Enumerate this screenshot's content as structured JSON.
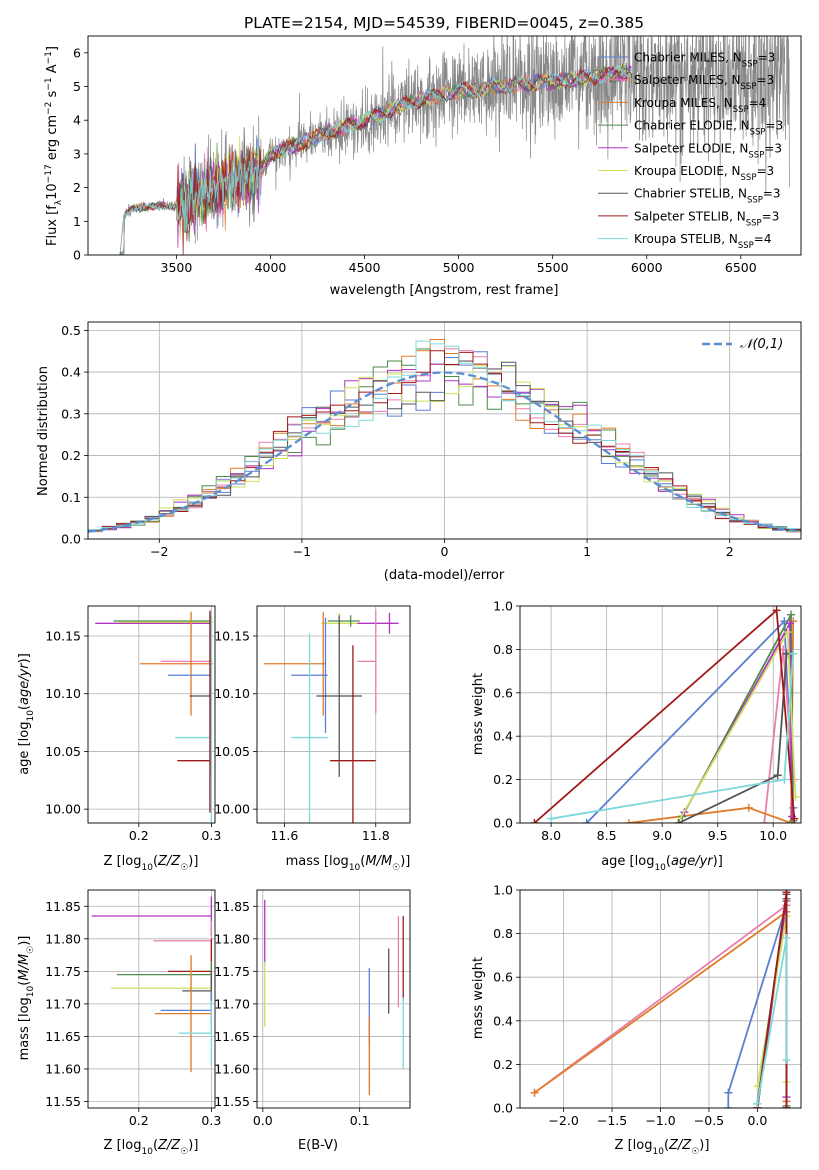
{
  "figure_title": "PLATE=2154, MJD=54539, FIBERID=0045, z=0.385",
  "series_colors": {
    "Chabrier MILES": "#5b7fd1",
    "Salpeter MILES": "#e87fae",
    "Kroupa MILES": "#e07b2a",
    "Chabrier ELODIE": "#4f8a4f",
    "Salpeter ELODIE": "#b035c0",
    "Kroupa ELODIE": "#cde05b",
    "Chabrier STELIB": "#555555",
    "Salpeter STELIB": "#a01a1a",
    "Kroupa STELIB": "#7fd8d8"
  },
  "chart_data": [
    {
      "id": "spectrum",
      "type": "line",
      "xlabel": "wavelength [Angstrom, rest frame]",
      "ylabel": "Flux [f_λ 10⁻¹⁷ erg cm⁻² s⁻¹ A⁻¹]",
      "xlim": [
        3030,
        6820
      ],
      "ylim": [
        0,
        6.5
      ],
      "xticks": [
        3500,
        4000,
        4500,
        5000,
        5500,
        6000,
        6500
      ],
      "yticks": [
        0,
        1,
        2,
        3,
        4,
        5,
        6
      ],
      "grid": false,
      "legend_position": "right",
      "data_color": "#888888",
      "data_envelope": {
        "x": [
          3200,
          3220,
          3250,
          3300,
          3400,
          3500,
          3550,
          3600,
          3700,
          3800,
          3900,
          3950,
          4000,
          4100,
          4200,
          4300,
          4400,
          4500,
          4600,
          4700,
          4800,
          4900,
          5000,
          5100,
          5200,
          5300,
          5400,
          5500,
          5600,
          5700,
          5800,
          5900,
          6000,
          6100,
          6200,
          6300,
          6400,
          6500,
          6600,
          6700
        ],
        "y": [
          0.0,
          1.2,
          1.35,
          1.4,
          1.45,
          1.45,
          1.55,
          1.7,
          1.95,
          2.2,
          2.4,
          2.5,
          3.0,
          3.2,
          3.4,
          3.6,
          3.8,
          4.0,
          4.2,
          4.45,
          4.6,
          4.75,
          4.85,
          4.9,
          5.0,
          5.05,
          5.1,
          5.15,
          5.2,
          5.3,
          5.35,
          5.4,
          5.4,
          5.35,
          5.4,
          5.35,
          5.35,
          5.3,
          5.3,
          5.3
        ],
        "noise_amplitude": "increases with wavelength, about 0.2 to 1.2 in flux"
      },
      "series": [
        {
          "name": "Chabrier MILES",
          "label_main": "Chabrier MILES, N",
          "label_sub": "SSP",
          "label_tail": "=3"
        },
        {
          "name": "Salpeter MILES",
          "label_main": "Salpeter MILES, N",
          "label_sub": "SSP",
          "label_tail": "=3"
        },
        {
          "name": "Kroupa MILES",
          "label_main": "Kroupa MILES, N",
          "label_sub": "SSP",
          "label_tail": "=4"
        },
        {
          "name": "Chabrier ELODIE",
          "label_main": "Chabrier ELODIE, N",
          "label_sub": "SSP",
          "label_tail": "=3"
        },
        {
          "name": "Salpeter ELODIE",
          "label_main": "Salpeter ELODIE, N",
          "label_sub": "SSP",
          "label_tail": "=3"
        },
        {
          "name": "Kroupa ELODIE",
          "label_main": "Kroupa ELODIE, N",
          "label_sub": "SSP",
          "label_tail": "=3"
        },
        {
          "name": "Chabrier STELIB",
          "label_main": "Chabrier STELIB, N",
          "label_sub": "SSP",
          "label_tail": "=3"
        },
        {
          "name": "Salpeter STELIB",
          "label_main": "Salpeter STELIB, N",
          "label_sub": "SSP",
          "label_tail": "=3"
        },
        {
          "name": "Kroupa STELIB",
          "label_main": "Kroupa STELIB, N",
          "label_sub": "SSP",
          "label_tail": "=4"
        }
      ]
    },
    {
      "id": "residuals",
      "type": "histogram",
      "xlabel": "(data-model)/error",
      "ylabel": "Normed distribution",
      "xlim": [
        -2.5,
        2.5
      ],
      "ylim": [
        0,
        0.52
      ],
      "xticks": [
        -2,
        -1,
        0,
        1,
        2
      ],
      "yticks": [
        0.0,
        0.1,
        0.2,
        0.3,
        0.4,
        0.5
      ],
      "grid": true,
      "legend_position": "top-right",
      "legend": "𝒩(0,1)",
      "reference_curve": {
        "name": "𝒩(0,1)",
        "kind": "gaussian",
        "mean": 0,
        "sigma": 1,
        "color": "#5b8fd4"
      },
      "bin_width": 0.1
    },
    {
      "id": "age-vs-z",
      "type": "errorbar",
      "xlabel": "Z [log10(Z/Z☉)]",
      "ylabel": "age [log10(age/yr)]",
      "xlim": [
        0.13,
        0.305
      ],
      "ylim": [
        9.988,
        10.176
      ],
      "xticks": [
        0.2,
        0.3
      ],
      "yticks": [
        10.0,
        10.05,
        10.1,
        10.15
      ],
      "grid": true,
      "points": [
        {
          "series": "Salpeter ELODIE",
          "x": 0.3,
          "y": 10.161,
          "xerr": [
            0.16,
            0.0
          ],
          "yerr": [
            0.006,
            0.006
          ]
        },
        {
          "series": "Chabrier ELODIE",
          "x": 0.3,
          "y": 10.163,
          "xerr": [
            0.135,
            0.0
          ],
          "yerr": [
            0.005,
            0.005
          ]
        },
        {
          "series": "Kroupa ELODIE",
          "x": 0.272,
          "y": 10.162,
          "xerr": [
            0.1,
            0.03
          ],
          "yerr": [
            0.009,
            0.009
          ]
        },
        {
          "series": "Salpeter MILES",
          "x": 0.3,
          "y": 10.128,
          "xerr": [
            0.07,
            0.0
          ],
          "yerr": [
            0.04,
            0.04
          ]
        },
        {
          "series": "Kroupa MILES",
          "x": 0.272,
          "y": 10.126,
          "xerr": [
            0.07,
            0.03
          ],
          "yerr": [
            0.045,
            0.045
          ]
        },
        {
          "series": "Chabrier MILES",
          "x": 0.3,
          "y": 10.116,
          "xerr": [
            0.06,
            0.0
          ],
          "yerr": [
            0.05,
            0.05
          ]
        },
        {
          "series": "Chabrier STELIB",
          "x": 0.3,
          "y": 10.098,
          "xerr": [
            0.03,
            0.0
          ],
          "yerr": [
            0.07,
            0.07
          ]
        },
        {
          "series": "Kroupa STELIB",
          "x": 0.3,
          "y": 10.062,
          "xerr": [
            0.05,
            0.0
          ],
          "yerr": [
            0.11,
            0.11
          ]
        },
        {
          "series": "Salpeter STELIB",
          "x": 0.298,
          "y": 10.042,
          "xerr": [
            0.045,
            0.0
          ],
          "yerr": [
            0.045,
            0.13
          ]
        }
      ]
    },
    {
      "id": "age-vs-mass",
      "type": "errorbar",
      "xlabel": "mass [log10(M/M☉)]",
      "ylabel": "",
      "xlim": [
        11.54,
        11.875
      ],
      "ylim": [
        9.988,
        10.176
      ],
      "xticks": [
        11.6,
        11.8
      ],
      "yticks": [
        10.0,
        10.05,
        10.1,
        10.15
      ],
      "grid": true,
      "points": [
        {
          "series": "Salpeter ELODIE",
          "x": 11.83,
          "y": 10.161,
          "xerr": [
            0.07,
            0.02
          ],
          "yerr": [
            0.009,
            0.009
          ]
        },
        {
          "series": "Kroupa ELODIE",
          "x": 11.72,
          "y": 10.161,
          "xerr": [
            0.04,
            0.04
          ],
          "yerr": [
            0.009,
            0.009
          ]
        },
        {
          "series": "Chabrier ELODIE",
          "x": 11.745,
          "y": 10.163,
          "xerr": [
            0.05,
            0.02
          ],
          "yerr": [
            0.005,
            0.005
          ]
        },
        {
          "series": "Salpeter MILES",
          "x": 11.8,
          "y": 10.128,
          "xerr": [
            0.04,
            0.0
          ],
          "yerr": [
            0.045,
            0.045
          ]
        },
        {
          "series": "Kroupa MILES",
          "x": 11.685,
          "y": 10.126,
          "xerr": [
            0.13,
            0.005
          ],
          "yerr": [
            0.045,
            0.045
          ]
        },
        {
          "series": "Chabrier MILES",
          "x": 11.69,
          "y": 10.116,
          "xerr": [
            0.075,
            0.005
          ],
          "yerr": [
            0.05,
            0.05
          ]
        },
        {
          "series": "Chabrier STELIB",
          "x": 11.72,
          "y": 10.098,
          "xerr": [
            0.05,
            0.05
          ],
          "yerr": [
            0.07,
            0.07
          ]
        },
        {
          "series": "Kroupa STELIB",
          "x": 11.655,
          "y": 10.062,
          "xerr": [
            0.04,
            0.04
          ],
          "yerr": [
            0.09,
            0.09
          ]
        },
        {
          "series": "Salpeter STELIB",
          "x": 11.75,
          "y": 10.042,
          "xerr": [
            0.05,
            0.05
          ],
          "yerr": [
            0.1,
            0.1
          ]
        }
      ]
    },
    {
      "id": "weight-vs-age",
      "type": "line",
      "xlabel": "age [log10(age/yr)]",
      "ylabel": "mass weight",
      "xlim": [
        7.72,
        10.25
      ],
      "ylim": [
        0,
        1.0
      ],
      "xticks": [
        8.0,
        8.5,
        9.0,
        9.5,
        10.0
      ],
      "yticks": [
        0.0,
        0.2,
        0.4,
        0.6,
        0.8,
        1.0
      ],
      "grid": true,
      "series": [
        {
          "name": "Chabrier MILES",
          "x": [
            8.32,
            10.1,
            10.18
          ],
          "y": [
            0.0,
            0.93,
            0.07
          ]
        },
        {
          "name": "Salpeter MILES",
          "x": [
            9.92,
            10.09,
            10.18
          ],
          "y": [
            0.0,
            0.8,
            0.2
          ]
        },
        {
          "name": "Kroupa MILES",
          "x": [
            8.7,
            9.78,
            10.16,
            10.18
          ],
          "y": [
            0.0,
            0.07,
            0.0,
            0.93
          ]
        },
        {
          "name": "Chabrier ELODIE",
          "x": [
            9.18,
            10.16,
            10.18
          ],
          "y": [
            0.03,
            0.96,
            0.01
          ]
        },
        {
          "name": "Salpeter ELODIE",
          "x": [
            9.2,
            10.15,
            10.17
          ],
          "y": [
            0.05,
            0.92,
            0.03
          ]
        },
        {
          "name": "Kroupa ELODIE",
          "x": [
            9.14,
            10.13,
            10.2
          ],
          "y": [
            0.0,
            0.88,
            0.12
          ]
        },
        {
          "name": "Chabrier STELIB",
          "x": [
            9.15,
            10.04,
            10.12
          ],
          "y": [
            0.0,
            0.22,
            0.78
          ]
        },
        {
          "name": "Salpeter STELIB",
          "x": [
            7.85,
            10.03,
            10.19
          ],
          "y": [
            0.0,
            0.98,
            0.02
          ]
        },
        {
          "name": "Kroupa STELIB",
          "x": [
            8.0,
            10.1,
            10.18
          ],
          "y": [
            0.02,
            0.2,
            0.78
          ]
        }
      ]
    },
    {
      "id": "mass-vs-z",
      "type": "errorbar",
      "xlabel": "Z [log10(Z/Z☉)]",
      "ylabel": "mass [log10(M/M☉)]",
      "xlim": [
        0.13,
        0.305
      ],
      "ylim": [
        11.54,
        11.875
      ],
      "xticks": [
        0.1,
        0.2,
        0.3
      ],
      "yticks": [
        11.55,
        11.6,
        11.65,
        11.7,
        11.75,
        11.8,
        11.85
      ],
      "grid": true,
      "points": [
        {
          "series": "Salpeter ELODIE",
          "x": 0.3,
          "y": 11.835,
          "xerr": [
            0.165,
            0.0
          ],
          "yerr": [
            0.03,
            0.03
          ]
        },
        {
          "series": "Salpeter MILES",
          "x": 0.3,
          "y": 11.797,
          "xerr": [
            0.08,
            0.0
          ],
          "yerr": [
            0.03,
            0.03
          ]
        },
        {
          "series": "Salpeter STELIB",
          "x": 0.3,
          "y": 11.75,
          "xerr": [
            0.06,
            0.0
          ],
          "yerr": [
            0.05,
            0.05
          ]
        },
        {
          "series": "Chabrier ELODIE",
          "x": 0.3,
          "y": 11.745,
          "xerr": [
            0.13,
            0.0
          ],
          "yerr": [
            0.02,
            0.02
          ]
        },
        {
          "series": "Kroupa ELODIE",
          "x": 0.272,
          "y": 11.724,
          "xerr": [
            0.11,
            0.028
          ],
          "yerr": [
            0.04,
            0.04
          ]
        },
        {
          "series": "Chabrier STELIB",
          "x": 0.3,
          "y": 11.72,
          "xerr": [
            0.04,
            0.0
          ],
          "yerr": [
            0.03,
            0.03
          ]
        },
        {
          "series": "Chabrier MILES",
          "x": 0.3,
          "y": 11.69,
          "xerr": [
            0.07,
            0.0
          ],
          "yerr": [
            0.03,
            0.03
          ]
        },
        {
          "series": "Kroupa MILES",
          "x": 0.272,
          "y": 11.685,
          "xerr": [
            0.05,
            0.028
          ],
          "yerr": [
            0.09,
            0.09
          ]
        },
        {
          "series": "Kroupa STELIB",
          "x": 0.3,
          "y": 11.655,
          "xerr": [
            0.045,
            0.0
          ],
          "yerr": [
            0.05,
            0.05
          ]
        }
      ]
    },
    {
      "id": "mass-vs-ebv",
      "type": "errorbar",
      "xlabel": "E(B-V)",
      "ylabel": "",
      "xlim": [
        -0.006,
        0.152
      ],
      "ylim": [
        11.54,
        11.875
      ],
      "xticks": [
        0.0,
        0.1
      ],
      "yticks": [
        11.55,
        11.6,
        11.65,
        11.7,
        11.75,
        11.8,
        11.85
      ],
      "grid": true,
      "points": [
        {
          "series": "Salpeter ELODIE",
          "x": 0.002,
          "y": 11.81,
          "xerr": [
            0,
            0
          ],
          "yerr": [
            0.05,
            0.05
          ]
        },
        {
          "series": "Kroupa ELODIE",
          "x": 0.002,
          "y": 11.715,
          "xerr": [
            0,
            0
          ],
          "yerr": [
            0.05,
            0.05
          ]
        },
        {
          "series": "Chabrier MILES",
          "x": 0.11,
          "y": 11.695,
          "xerr": [
            0,
            0
          ],
          "yerr": [
            0.06,
            0.06
          ]
        },
        {
          "series": "Kroupa MILES",
          "x": 0.11,
          "y": 11.62,
          "xerr": [
            0,
            0
          ],
          "yerr": [
            0.06,
            0.06
          ]
        },
        {
          "series": "Chabrier STELIB",
          "x": 0.13,
          "y": 11.735,
          "xerr": [
            0,
            0
          ],
          "yerr": [
            0.05,
            0.05
          ]
        },
        {
          "series": "Salpeter MILES",
          "x": 0.14,
          "y": 11.765,
          "xerr": [
            0,
            0
          ],
          "yerr": [
            0.07,
            0.07
          ]
        },
        {
          "series": "Salpeter STELIB",
          "x": 0.145,
          "y": 11.77,
          "xerr": [
            0,
            0
          ],
          "yerr": [
            0.065,
            0.065
          ]
        },
        {
          "series": "Kroupa STELIB",
          "x": 0.145,
          "y": 11.655,
          "xerr": [
            0,
            0
          ],
          "yerr": [
            0.055,
            0.055
          ]
        }
      ]
    },
    {
      "id": "weight-vs-z",
      "type": "line",
      "xlabel": "Z [log10(Z/Z☉)]",
      "ylabel": "mass weight",
      "xlim": [
        -2.45,
        0.45
      ],
      "ylim": [
        0,
        1.0
      ],
      "xticks": [
        -2.0,
        -1.5,
        -1.0,
        -0.5,
        0.0
      ],
      "yticks": [
        0.0,
        0.2,
        0.4,
        0.6,
        0.8,
        1.0
      ],
      "grid": true,
      "series": [
        {
          "name": "Chabrier MILES",
          "x": [
            -0.3,
            -0.3,
            0.3,
            0.3
          ],
          "y": [
            0.0,
            0.07,
            0.93,
            0.0
          ]
        },
        {
          "name": "Salpeter MILES",
          "x": [
            -2.3,
            0.3,
            0.3
          ],
          "y": [
            0.07,
            0.93,
            0.0
          ]
        },
        {
          "name": "Kroupa MILES",
          "x": [
            -2.3,
            0.3,
            0.3
          ],
          "y": [
            0.07,
            0.9,
            0.03
          ]
        },
        {
          "name": "Chabrier ELODIE",
          "x": [
            0.0,
            0.3,
            0.3
          ],
          "y": [
            0.0,
            0.96,
            0.01
          ]
        },
        {
          "name": "Salpeter ELODIE",
          "x": [
            0.0,
            0.3,
            0.3
          ],
          "y": [
            0.0,
            0.95,
            0.05
          ]
        },
        {
          "name": "Kroupa ELODIE",
          "x": [
            0.0,
            0.3,
            0.3
          ],
          "y": [
            0.1,
            0.88,
            0.12
          ]
        },
        {
          "name": "Chabrier STELIB",
          "x": [
            0.0,
            0.3,
            0.3
          ],
          "y": [
            0.02,
            0.98,
            0.0
          ]
        },
        {
          "name": "Salpeter STELIB",
          "x": [
            0.0,
            0.3,
            0.3
          ],
          "y": [
            0.0,
            0.99,
            0.0
          ]
        },
        {
          "name": "Kroupa STELIB",
          "x": [
            0.0,
            0.3,
            0.3
          ],
          "y": [
            0.02,
            0.78,
            0.22
          ]
        }
      ]
    }
  ]
}
